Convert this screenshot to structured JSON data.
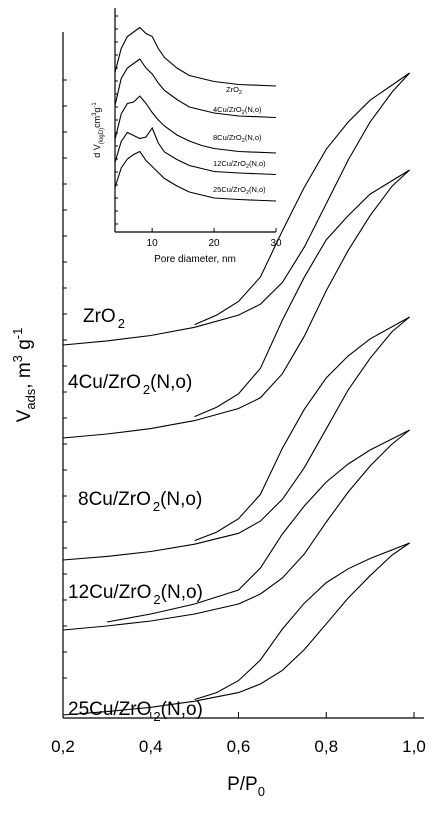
{
  "chart_data": [
    {
      "type": "line",
      "title": "",
      "xlabel": "P/P0",
      "xlabel_main": "P/P",
      "xlabel_sub": "0",
      "ylabel": "Vads, m3 g-1",
      "xlim": [
        0.2,
        1.0
      ],
      "y_tick_labels_shown": false,
      "xticks": [
        "0,2",
        "0,4",
        "0,6",
        "0,8",
        "1,0"
      ],
      "xtick_values": [
        0.2,
        0.4,
        0.6,
        0.8,
        1.0
      ],
      "series": [
        {
          "name": "ZrO2",
          "label_parts": [
            "ZrO",
            "2",
            ""
          ],
          "adsorption": [
            [
              0.2,
              0.0
            ],
            [
              0.3,
              0.015
            ],
            [
              0.4,
              0.035
            ],
            [
              0.5,
              0.065
            ],
            [
              0.6,
              0.11
            ],
            [
              0.65,
              0.15
            ],
            [
              0.7,
              0.23
            ],
            [
              0.75,
              0.36
            ],
            [
              0.8,
              0.52
            ],
            [
              0.85,
              0.68
            ],
            [
              0.9,
              0.82
            ],
            [
              0.95,
              0.93
            ],
            [
              0.99,
              1.0
            ]
          ],
          "desorption": [
            [
              0.99,
              1.0
            ],
            [
              0.9,
              0.9
            ],
            [
              0.85,
              0.82
            ],
            [
              0.8,
              0.72
            ],
            [
              0.75,
              0.58
            ],
            [
              0.7,
              0.42
            ],
            [
              0.65,
              0.25
            ],
            [
              0.6,
              0.16
            ],
            [
              0.55,
              0.11
            ],
            [
              0.5,
              0.075
            ]
          ]
        },
        {
          "name": "4Cu/ZrO2(N,o)",
          "label_parts": [
            "4Cu/ZrO",
            "2",
            "(N,o)"
          ],
          "adsorption": [
            [
              0.2,
              0.0
            ],
            [
              0.3,
              0.015
            ],
            [
              0.4,
              0.035
            ],
            [
              0.5,
              0.065
            ],
            [
              0.6,
              0.11
            ],
            [
              0.65,
              0.15
            ],
            [
              0.7,
              0.24
            ],
            [
              0.75,
              0.38
            ],
            [
              0.8,
              0.55
            ],
            [
              0.85,
              0.7
            ],
            [
              0.9,
              0.83
            ],
            [
              0.95,
              0.94
            ],
            [
              0.99,
              1.0
            ]
          ],
          "desorption": [
            [
              0.99,
              1.0
            ],
            [
              0.9,
              0.91
            ],
            [
              0.85,
              0.83
            ],
            [
              0.8,
              0.74
            ],
            [
              0.75,
              0.6
            ],
            [
              0.7,
              0.44
            ],
            [
              0.65,
              0.26
            ],
            [
              0.6,
              0.165
            ],
            [
              0.55,
              0.115
            ],
            [
              0.5,
              0.08
            ]
          ]
        },
        {
          "name": "8Cu/ZrO2(N,o)",
          "label_parts": [
            "8Cu/ZrO",
            "2",
            "(N,o)"
          ],
          "adsorption": [
            [
              0.2,
              0.0
            ],
            [
              0.3,
              0.015
            ],
            [
              0.4,
              0.035
            ],
            [
              0.5,
              0.065
            ],
            [
              0.6,
              0.11
            ],
            [
              0.65,
              0.16
            ],
            [
              0.7,
              0.25
            ],
            [
              0.75,
              0.38
            ],
            [
              0.8,
              0.54
            ],
            [
              0.85,
              0.7
            ],
            [
              0.9,
              0.83
            ],
            [
              0.95,
              0.94
            ],
            [
              0.99,
              1.0
            ]
          ],
          "desorption": [
            [
              0.99,
              1.0
            ],
            [
              0.9,
              0.91
            ],
            [
              0.85,
              0.84
            ],
            [
              0.8,
              0.75
            ],
            [
              0.75,
              0.62
            ],
            [
              0.7,
              0.46
            ],
            [
              0.65,
              0.27
            ],
            [
              0.6,
              0.17
            ],
            [
              0.55,
              0.115
            ],
            [
              0.5,
              0.08
            ]
          ]
        },
        {
          "name": "12Cu/ZrO2(N,o)",
          "label_parts": [
            "12Cu/ZrO",
            "2",
            "(N,o)"
          ],
          "adsorption": [
            [
              0.2,
              0.0
            ],
            [
              0.3,
              0.02
            ],
            [
              0.4,
              0.045
            ],
            [
              0.5,
              0.08
            ],
            [
              0.6,
              0.13
            ],
            [
              0.65,
              0.18
            ],
            [
              0.7,
              0.26
            ],
            [
              0.75,
              0.38
            ],
            [
              0.8,
              0.54
            ],
            [
              0.85,
              0.69
            ],
            [
              0.9,
              0.82
            ],
            [
              0.95,
              0.93
            ],
            [
              0.99,
              1.0
            ]
          ],
          "desorption": [
            [
              0.99,
              1.0
            ],
            [
              0.9,
              0.9
            ],
            [
              0.85,
              0.83
            ],
            [
              0.8,
              0.74
            ],
            [
              0.75,
              0.62
            ],
            [
              0.7,
              0.48
            ],
            [
              0.65,
              0.31
            ],
            [
              0.6,
              0.2
            ],
            [
              0.5,
              0.13
            ],
            [
              0.4,
              0.08
            ],
            [
              0.3,
              0.04
            ]
          ]
        },
        {
          "name": "25Cu/ZrO2(N,o)",
          "label_parts": [
            "25Cu/ZrO",
            "2",
            "(N,o)"
          ],
          "adsorption": [
            [
              0.2,
              0.0
            ],
            [
              0.3,
              0.02
            ],
            [
              0.4,
              0.045
            ],
            [
              0.5,
              0.08
            ],
            [
              0.6,
              0.13
            ],
            [
              0.65,
              0.18
            ],
            [
              0.7,
              0.26
            ],
            [
              0.75,
              0.38
            ],
            [
              0.8,
              0.53
            ],
            [
              0.85,
              0.68
            ],
            [
              0.9,
              0.81
            ],
            [
              0.95,
              0.93
            ],
            [
              0.99,
              1.0
            ]
          ],
          "desorption": [
            [
              0.99,
              1.0
            ],
            [
              0.9,
              0.91
            ],
            [
              0.85,
              0.85
            ],
            [
              0.8,
              0.77
            ],
            [
              0.75,
              0.65
            ],
            [
              0.7,
              0.5
            ],
            [
              0.65,
              0.32
            ],
            [
              0.6,
              0.2
            ],
            [
              0.55,
              0.13
            ],
            [
              0.5,
              0.09
            ]
          ]
        }
      ]
    },
    {
      "type": "line",
      "title": "",
      "xlabel": "Pore diameter, nm",
      "ylabel": "dV(logD) cm3 g-1",
      "ylabel_parts": [
        "d V",
        "(logD)",
        "cm",
        "3",
        "g",
        "-1"
      ],
      "xlim": [
        4,
        30
      ],
      "xticks": [
        "10",
        "20",
        "30"
      ],
      "xtick_values": [
        10,
        20,
        30
      ],
      "series": [
        {
          "name": "ZrO2",
          "label_parts": [
            "ZrO",
            "2",
            ""
          ],
          "values": [
            [
              4,
              0.3
            ],
            [
              5,
              0.62
            ],
            [
              6,
              0.78
            ],
            [
              7,
              0.84
            ],
            [
              8,
              0.9
            ],
            [
              9,
              0.82
            ],
            [
              10,
              0.78
            ],
            [
              11,
              0.62
            ],
            [
              12,
              0.5
            ],
            [
              14,
              0.36
            ],
            [
              16,
              0.26
            ],
            [
              18,
              0.22
            ],
            [
              20,
              0.18
            ],
            [
              24,
              0.14
            ],
            [
              30,
              0.12
            ]
          ]
        },
        {
          "name": "4Cu/ZrO2(N,o)",
          "label_parts": [
            "4Cu/ZrO",
            "2",
            "(N,o)"
          ],
          "values": [
            [
              4,
              0.3
            ],
            [
              5,
              0.66
            ],
            [
              6,
              0.8
            ],
            [
              7,
              0.86
            ],
            [
              8,
              0.92
            ],
            [
              9,
              0.8
            ],
            [
              10,
              0.72
            ],
            [
              11,
              0.6
            ],
            [
              12,
              0.5
            ],
            [
              14,
              0.38
            ],
            [
              16,
              0.28
            ],
            [
              18,
              0.24
            ],
            [
              20,
              0.2
            ],
            [
              24,
              0.16
            ],
            [
              30,
              0.14
            ]
          ]
        },
        {
          "name": "8Cu/ZrO2(N,o)",
          "label_parts": [
            "8Cu/ZrO",
            "2",
            "(N,o)"
          ],
          "values": [
            [
              4,
              0.3
            ],
            [
              5,
              0.64
            ],
            [
              6,
              0.78
            ],
            [
              7,
              0.8
            ],
            [
              8,
              0.88
            ],
            [
              9,
              0.78
            ],
            [
              10,
              0.66
            ],
            [
              11,
              0.56
            ],
            [
              12,
              0.48
            ],
            [
              14,
              0.36
            ],
            [
              16,
              0.28
            ],
            [
              18,
              0.22
            ],
            [
              20,
              0.18
            ],
            [
              24,
              0.14
            ],
            [
              30,
              0.12
            ]
          ]
        },
        {
          "name": "12Cu/ZrO2(N,o)",
          "label_parts": [
            "12Cu/ZrO",
            "2",
            "(N,o)"
          ],
          "values": [
            [
              4,
              0.3
            ],
            [
              5,
              0.58
            ],
            [
              6,
              0.7
            ],
            [
              7,
              0.66
            ],
            [
              8,
              0.62
            ],
            [
              9,
              0.64
            ],
            [
              10,
              0.76
            ],
            [
              11,
              0.56
            ],
            [
              12,
              0.44
            ],
            [
              14,
              0.34
            ],
            [
              16,
              0.26
            ],
            [
              18,
              0.22
            ],
            [
              20,
              0.18
            ],
            [
              24,
              0.16
            ],
            [
              30,
              0.14
            ]
          ]
        },
        {
          "name": "25Cu/ZrO2(N,o)",
          "label_parts": [
            "25Cu/ZrO",
            "2",
            "(N,o)"
          ],
          "values": [
            [
              4,
              0.3
            ],
            [
              5,
              0.56
            ],
            [
              6,
              0.68
            ],
            [
              7,
              0.74
            ],
            [
              8,
              0.78
            ],
            [
              9,
              0.66
            ],
            [
              10,
              0.58
            ],
            [
              11,
              0.5
            ],
            [
              12,
              0.42
            ],
            [
              14,
              0.32
            ],
            [
              16,
              0.24
            ],
            [
              18,
              0.2
            ],
            [
              20,
              0.16
            ],
            [
              24,
              0.14
            ],
            [
              30,
              0.12
            ]
          ]
        }
      ]
    }
  ]
}
